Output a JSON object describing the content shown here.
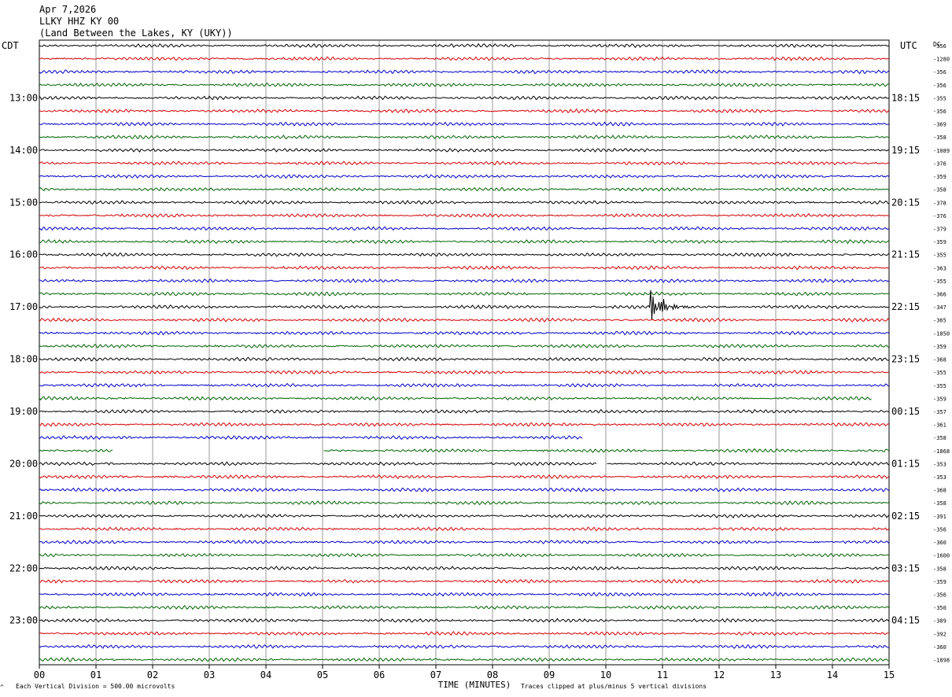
{
  "header": {
    "date": "Apr 7,2026",
    "station": "LLKY HHZ KY 00",
    "location": "(Land Between the Lakes, KY (UKY))"
  },
  "left_timezone": "CDT",
  "right_timezone": "UTC",
  "dc_label": "DC",
  "footer": {
    "scale_note": "Each Vertical Division =  500.00 microvolts",
    "x_title": "TIME (MINUTES)",
    "clip_note": "Traces clipped at plus/minus 5 vertical divisions",
    "corner_mark": "^"
  },
  "colors": {
    "trace_cycle": [
      "#000000",
      "#d40000",
      "#0000c8",
      "#006400"
    ],
    "grid": "#000000",
    "background": "#ffffff"
  },
  "chart_data": {
    "type": "line",
    "title": "LLKY HHZ KY 00",
    "xlabel": "TIME (MINUTES)",
    "x_ticks": [
      "00",
      "01",
      "02",
      "03",
      "04",
      "05",
      "06",
      "07",
      "08",
      "09",
      "10",
      "11",
      "12",
      "13",
      "14",
      "15"
    ],
    "xlim": [
      0,
      15
    ],
    "minutes_per_line": 15,
    "line_count": 48,
    "vertical_division_microvolts": 500.0,
    "clip_divisions": 5,
    "left_time_labels": [
      {
        "line": 4,
        "label": "13:00"
      },
      {
        "line": 8,
        "label": "14:00"
      },
      {
        "line": 12,
        "label": "15:00"
      },
      {
        "line": 16,
        "label": "16:00"
      },
      {
        "line": 20,
        "label": "17:00"
      },
      {
        "line": 24,
        "label": "18:00"
      },
      {
        "line": 28,
        "label": "19:00"
      },
      {
        "line": 32,
        "label": "20:00"
      },
      {
        "line": 36,
        "label": "21:00"
      },
      {
        "line": 40,
        "label": "22:00"
      },
      {
        "line": 44,
        "label": "23:00"
      }
    ],
    "right_time_labels": [
      {
        "line": 4,
        "label": "18:15"
      },
      {
        "line": 8,
        "label": "19:15"
      },
      {
        "line": 12,
        "label": "20:15"
      },
      {
        "line": 16,
        "label": "21:15"
      },
      {
        "line": 20,
        "label": "22:15"
      },
      {
        "line": 24,
        "label": "23:15"
      },
      {
        "line": 28,
        "label": "00:15"
      },
      {
        "line": 32,
        "label": "01:15"
      },
      {
        "line": 36,
        "label": "02:15"
      },
      {
        "line": 40,
        "label": "03:15"
      },
      {
        "line": 44,
        "label": "04:15"
      }
    ],
    "dc_offsets": [
      "-356",
      "-1280",
      "-356",
      "-356",
      "-355",
      "-356",
      "-369",
      "-358",
      "-1089",
      "-376",
      "-359",
      "-358",
      "-378",
      "-376",
      "-379",
      "-359",
      "-355",
      "-363",
      "-355",
      "-366",
      "-347",
      "-365",
      "-1850",
      "-359",
      "-368",
      "-355",
      "-355",
      "-359",
      "-357",
      "-361",
      "-358",
      "-1868",
      "-353",
      "-353",
      "-368",
      "-358",
      "-391",
      "-356",
      "-360",
      "-1600",
      "-358",
      "-359",
      "-356",
      "-350",
      "-389",
      "-392",
      "-360",
      "-1898"
    ],
    "events": [
      {
        "line": 20,
        "start_min": 10.78,
        "end_min": 11.6,
        "peak_divisions": 3
      }
    ],
    "gaps": [
      {
        "line": 30,
        "start_min": 9.6,
        "end_min": 15.0
      },
      {
        "line": 31,
        "start_min": 1.3,
        "end_min": 5.0
      },
      {
        "line": 32,
        "start_min": 9.85,
        "end_min": 10.0
      },
      {
        "line": 27,
        "start_min": 14.7,
        "end_min": 15.0
      }
    ]
  }
}
